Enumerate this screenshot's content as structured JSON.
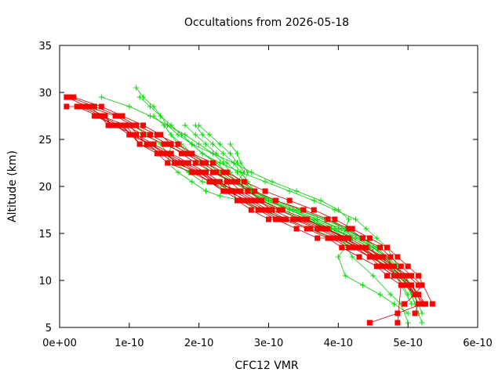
{
  "chart_data": {
    "type": "line",
    "title": "Occultations from 2026-05-18",
    "xlabel": "CFC12 VMR",
    "ylabel": "Altitude (km)",
    "xlim": [
      0,
      6e-10
    ],
    "ylim": [
      5,
      35
    ],
    "x_ticks": [
      {
        "value": 0,
        "label": "0e+00"
      },
      {
        "value": 1e-10,
        "label": "1e-10"
      },
      {
        "value": 2e-10,
        "label": "2e-10"
      },
      {
        "value": 3e-10,
        "label": "3e-10"
      },
      {
        "value": 4e-10,
        "label": "4e-10"
      },
      {
        "value": 5e-10,
        "label": "5e-10"
      },
      {
        "value": 6e-10,
        "label": "6e-10"
      }
    ],
    "y_ticks": [
      {
        "value": 5,
        "label": "5"
      },
      {
        "value": 10,
        "label": "10"
      },
      {
        "value": 15,
        "label": "15"
      },
      {
        "value": 20,
        "label": "20"
      },
      {
        "value": 25,
        "label": "25"
      },
      {
        "value": 30,
        "label": "30"
      },
      {
        "value": 35,
        "label": "35"
      }
    ],
    "grid": false,
    "legend": "none",
    "series_style": {
      "red": {
        "color": "#ff0000",
        "marker": "square",
        "line": "#cc0000"
      },
      "green": {
        "color": "#00dd00",
        "marker": "plus",
        "line": "#00cc00"
      }
    },
    "series": [
      {
        "style": "red",
        "x": [
          1e-11,
          4e-11,
          8e-11,
          1.05e-10,
          1.3e-10,
          1.55e-10,
          1.75e-10,
          1.95e-10,
          2.2e-10,
          2.5e-10,
          2.8e-10,
          3.1e-10,
          3.5e-10,
          3.85e-10,
          4.15e-10,
          4.35e-10,
          4.6e-10,
          4.75e-10,
          4.9e-10,
          5.05e-10,
          5.2e-10,
          5.1e-10,
          4.95e-10
        ],
        "y": [
          29.5,
          28.5,
          27.5,
          26.5,
          25.5,
          24.5,
          23.5,
          22.5,
          21.5,
          20.5,
          19.5,
          18.5,
          17.5,
          16.5,
          15.5,
          14.5,
          13.5,
          12.5,
          11.5,
          10.5,
          9.5,
          8.5,
          7.5
        ]
      },
      {
        "style": "red",
        "x": [
          1.5e-11,
          5e-11,
          8.5e-11,
          1.1e-10,
          1.4e-10,
          1.7e-10,
          1.9e-10,
          2.2e-10,
          2.4e-10,
          2.65e-10,
          2.95e-10,
          3.3e-10,
          3.65e-10,
          3.95e-10,
          4.2e-10,
          4.45e-10,
          4.7e-10,
          4.85e-10,
          5e-10,
          5.15e-10,
          5.35e-10
        ],
        "y": [
          29.5,
          28.5,
          27.5,
          26.5,
          25.5,
          24.5,
          23.5,
          22.5,
          21.5,
          20.5,
          19.5,
          18.5,
          17.5,
          16.5,
          15.5,
          14.5,
          13.5,
          12.5,
          11.5,
          10.5,
          7.5
        ]
      },
      {
        "style": "red",
        "x": [
          2e-11,
          6e-11,
          9e-11,
          1.2e-10,
          1.45e-10,
          1.6e-10,
          1.85e-10,
          2.1e-10,
          2.35e-10,
          2.55e-10,
          2.7e-10,
          2.9e-10,
          3.2e-10,
          3.55e-10,
          3.8e-10,
          4.1e-10,
          4.3e-10,
          4.5e-10,
          4.65e-10,
          4.85e-10,
          5e-10,
          5.15e-10,
          5.1e-10
        ],
        "y": [
          29.5,
          28.5,
          27.5,
          26.5,
          25.5,
          24.5,
          23.5,
          22.5,
          21.5,
          20.5,
          19.5,
          18.5,
          17.5,
          16.5,
          15.5,
          14.5,
          13.5,
          12.5,
          11.5,
          10.5,
          9.5,
          7.5,
          6.5
        ]
      },
      {
        "style": "red",
        "x": [
          1e-11,
          3e-11,
          6e-11,
          9.5e-11,
          1.2e-10,
          1.5e-10,
          1.8e-10,
          2.05e-10,
          2.25e-10,
          2.45e-10,
          2.6e-10,
          2.85e-10,
          3.05e-10,
          3.35e-10,
          3.7e-10,
          4e-10,
          4.3e-10,
          4.55e-10,
          4.75e-10,
          4.9e-10,
          5.05e-10,
          5.15e-10,
          5.25e-10
        ],
        "y": [
          28.5,
          28.5,
          27.5,
          26.5,
          25.5,
          24.5,
          23.5,
          22.5,
          21.5,
          20.5,
          19.5,
          18.5,
          17.5,
          16.5,
          15.5,
          14.5,
          13.5,
          12.5,
          11.5,
          10.5,
          9.5,
          8.5,
          7.5
        ]
      },
      {
        "style": "red",
        "x": [
          2.5e-11,
          5.5e-11,
          8e-11,
          1e-10,
          1.25e-10,
          1.45e-10,
          1.65e-10,
          2e-10,
          2.2e-10,
          2.4e-10,
          2.55e-10,
          2.75e-10,
          3e-10,
          3.4e-10,
          3.75e-10,
          4.05e-10,
          4.25e-10,
          4.45e-10,
          4.6e-10,
          4.8e-10,
          4.95e-10,
          5.1e-10
        ],
        "y": [
          28.5,
          27.5,
          26.5,
          26.5,
          24.5,
          23.5,
          22.5,
          21.5,
          20.5,
          20.5,
          18.5,
          17.5,
          16.5,
          16.5,
          15.5,
          14.5,
          13.5,
          12.5,
          11.5,
          10.5,
          9.5,
          8.5
        ]
      },
      {
        "style": "red",
        "x": [
          3.5e-11,
          6.5e-11,
          7.5e-11,
          1.1e-10,
          1.35e-10,
          1.6e-10,
          1.85e-10,
          2.1e-10,
          2.3e-10,
          2.5e-10,
          2.75e-10,
          3e-10,
          3.25e-10,
          3.6e-10,
          3.9e-10,
          4.15e-10,
          4.4e-10,
          4.65e-10,
          4.8e-10,
          5e-10,
          5.15e-10
        ],
        "y": [
          28.5,
          27.5,
          26.5,
          25.5,
          24.5,
          23.5,
          22.5,
          21.5,
          20.5,
          19.5,
          18.5,
          17.5,
          16.5,
          15.5,
          14.5,
          13.5,
          13.5,
          12.5,
          11.5,
          10.5,
          9.5
        ]
      },
      {
        "style": "red",
        "x": [
          4.5e-11,
          7e-11,
          9.5e-11,
          1.15e-10,
          1.5e-10,
          1.75e-10,
          2e-10,
          2.25e-10,
          2.55e-10,
          2.8e-10,
          3.15e-10,
          3.45e-10,
          3.8e-10,
          4.15e-10,
          4.4e-10,
          4.6e-10,
          4.8e-10,
          4.95e-10,
          5.1e-10,
          5.25e-10
        ],
        "y": [
          28.5,
          26.5,
          26.5,
          24.5,
          23.5,
          22.5,
          21.5,
          20.5,
          19.5,
          18.5,
          17.5,
          16.5,
          15.5,
          14.5,
          13.5,
          12.5,
          11.5,
          10.5,
          8.5,
          7.5
        ]
      },
      {
        "style": "red",
        "x": [
          5e-11,
          8e-11,
          1e-10,
          1.3e-10,
          1.55e-10,
          1.8e-10,
          2.05e-10,
          2.25e-10,
          2.45e-10,
          2.65e-10,
          2.9e-10,
          3.15e-10,
          3.5e-10,
          3.85e-10,
          4.1e-10,
          4.35e-10,
          4.55e-10,
          4.75e-10,
          4.9e-10,
          5.05e-10,
          5.2e-10,
          4.85e-10,
          4.45e-10
        ],
        "y": [
          27.5,
          26.5,
          25.5,
          24.5,
          23.5,
          22.5,
          21.5,
          20.5,
          19.5,
          18.5,
          17.5,
          16.5,
          16.5,
          15.5,
          14.5,
          13.5,
          12.5,
          11.5,
          10.5,
          9.5,
          7.5,
          6.5,
          5.5
        ]
      },
      {
        "style": "red",
        "x": [
          6e-11,
          8.5e-11,
          1.05e-10,
          1.3e-10,
          1.5e-10,
          1.7e-10,
          1.95e-10,
          2.15e-10,
          2.35e-10,
          2.6e-10,
          2.85e-10,
          3.1e-10,
          3.4e-10,
          3.7e-10,
          3.95e-10,
          4.2e-10,
          4.45e-10,
          4.7e-10,
          4.85e-10,
          5e-10,
          5.1e-10
        ],
        "y": [
          27.5,
          26.5,
          25.5,
          24.5,
          23.5,
          22.5,
          21.5,
          20.5,
          19.5,
          18.5,
          17.5,
          16.5,
          15.5,
          14.5,
          14.5,
          13.5,
          12.5,
          11.5,
          10.5,
          9.5,
          8.5
        ]
      },
      {
        "style": "red",
        "x": [
          7e-11,
          9e-11,
          1.15e-10,
          1.4e-10,
          1.55e-10,
          1.9e-10,
          2.15e-10,
          2.4e-10,
          2.7e-10,
          2.95e-10,
          3.2e-10,
          3.55e-10,
          3.85e-10,
          4.05e-10,
          4.3e-10,
          4.55e-10,
          4.7e-10,
          4.9e-10,
          4.85e-10
        ],
        "y": [
          26.5,
          26.5,
          24.5,
          23.5,
          22.5,
          21.5,
          20.5,
          19.5,
          18.5,
          17.5,
          16.5,
          15.5,
          14.5,
          13.5,
          12.5,
          11.5,
          10.5,
          9.5,
          5.5
        ]
      },
      {
        "style": "green",
        "x": [
          6e-11,
          1e-10,
          1.3e-10,
          1.55e-10,
          1.8e-10,
          2e-10,
          2.2e-10,
          2.35e-10,
          2.45e-10,
          2.6e-10,
          2.8e-10,
          3.1e-10,
          3.45e-10,
          3.8e-10,
          4.1e-10,
          4.35e-10,
          4.5e-10,
          4.7e-10,
          4.9e-10,
          5.05e-10,
          5.15e-10,
          5.2e-10
        ],
        "y": [
          29.5,
          28.5,
          27.5,
          26.5,
          25.5,
          24.5,
          23.5,
          22.5,
          21.5,
          20.5,
          19.5,
          18.5,
          17.5,
          16.5,
          15.5,
          14.5,
          13.5,
          12.5,
          10.5,
          8.5,
          6.5,
          5.5
        ]
      },
      {
        "style": "green",
        "x": [
          1.1e-10,
          1.2e-10,
          1.35e-10,
          1.45e-10,
          1.55e-10,
          1.7e-10,
          1.9e-10,
          2.2e-10,
          2.5e-10,
          2.75e-10,
          3.05e-10,
          3.4e-10,
          3.75e-10,
          4e-10,
          4.15e-10,
          4.05e-10,
          4.2e-10,
          4.5e-10,
          4.75e-10,
          4.9e-10,
          5e-10
        ],
        "y": [
          30.5,
          29.5,
          28.5,
          27.5,
          26.5,
          25.5,
          24.5,
          23.5,
          22.5,
          21.5,
          20.5,
          19.5,
          18.5,
          17.5,
          16.5,
          14.5,
          12.5,
          10.5,
          8.5,
          7.5,
          5.5
        ]
      },
      {
        "style": "green",
        "x": [
          1.15e-10,
          1.3e-10,
          1.45e-10,
          1.6e-10,
          1.75e-10,
          1.9e-10,
          2.05e-10,
          2.3e-10,
          2.6e-10,
          2.95e-10,
          3.3e-10,
          3.65e-10,
          3.95e-10,
          4.25e-10,
          4.4e-10,
          4.55e-10,
          4.7e-10,
          4.85e-10,
          5e-10,
          5.1e-10
        ],
        "y": [
          29.5,
          28.5,
          27.5,
          26.5,
          25.5,
          24.5,
          23.5,
          22.5,
          21.5,
          20.5,
          19.5,
          18.5,
          17.5,
          16.5,
          15.5,
          14.5,
          13.5,
          11.5,
          9.5,
          7.5
        ]
      },
      {
        "style": "green",
        "x": [
          1.35e-10,
          1.5e-10,
          1.6e-10,
          1.7e-10,
          1.85e-10,
          2e-10,
          2.2e-10,
          2.45e-10,
          2.75e-10,
          3.1e-10,
          3.5e-10,
          3.85e-10,
          4.1e-10,
          4.2e-10,
          4e-10,
          4.1e-10,
          4.35e-10,
          4.6e-10,
          4.8e-10,
          5e-10
        ],
        "y": [
          27.5,
          26.5,
          25.5,
          24.5,
          23.5,
          22.5,
          21.5,
          20.5,
          19.5,
          18.5,
          17.5,
          16.5,
          15.5,
          14.5,
          12.5,
          10.5,
          9.5,
          8.5,
          7.5,
          6.5
        ]
      },
      {
        "style": "green",
        "x": [
          1.5e-10,
          1.6e-10,
          1.75e-10,
          1.9e-10,
          2.1e-10,
          2.3e-10,
          2.5e-10,
          2.7e-10,
          2.95e-10,
          3.3e-10,
          3.65e-10,
          3.95e-10,
          4.2e-10,
          4.45e-10,
          4.6e-10,
          4.75e-10,
          4.9e-10,
          5.05e-10
        ],
        "y": [
          26.5,
          25.5,
          24.5,
          23.5,
          22.5,
          21.5,
          20.5,
          19.5,
          18.5,
          17.5,
          16.5,
          15.5,
          14.5,
          13.5,
          12.5,
          11.5,
          9.5,
          7.5
        ]
      },
      {
        "style": "green",
        "x": [
          1.6e-10,
          1.75e-10,
          1.9e-10,
          2.05e-10,
          2.25e-10,
          2.4e-10,
          2.55e-10,
          2.7e-10,
          2.9e-10,
          3.2e-10,
          3.55e-10,
          3.9e-10,
          4.25e-10,
          4.5e-10,
          4.65e-10,
          4.8e-10,
          4.95e-10,
          5.05e-10,
          5.15e-10
        ],
        "y": [
          26.5,
          25.5,
          24.5,
          23.5,
          22.5,
          21.5,
          20.5,
          19.5,
          18.5,
          17.5,
          16.5,
          15.5,
          14.5,
          13.5,
          12.5,
          11.5,
          10.5,
          9.5,
          8.5
        ]
      },
      {
        "style": "green",
        "x": [
          1.8e-10,
          1.95e-10,
          2.1e-10,
          2.25e-10,
          2.4e-10,
          2.55e-10,
          2.65e-10,
          2.8e-10,
          3e-10,
          3.35e-10,
          3.7e-10,
          4e-10,
          4.3e-10,
          4.5e-10,
          4.7e-10,
          4.85e-10
        ],
        "y": [
          26.5,
          25.5,
          24.5,
          23.5,
          22.5,
          21.5,
          20.5,
          19.5,
          18.5,
          17.5,
          16.5,
          15.5,
          14.5,
          13.5,
          12.5,
          11.5
        ]
      },
      {
        "style": "green",
        "x": [
          1.95e-10,
          2.05e-10,
          2.2e-10,
          2.35e-10,
          2.5e-10,
          2.6e-10,
          2.7e-10,
          2.8e-10,
          3e-10,
          3.3e-10,
          3.6e-10,
          3.9e-10,
          4.1e-10,
          4.3e-10,
          4.5e-10,
          4.7e-10,
          4.9e-10,
          5.1e-10,
          5.2e-10
        ],
        "y": [
          26.5,
          25.5,
          24.5,
          23.5,
          22.5,
          21.5,
          20.5,
          19.5,
          18.5,
          17.5,
          16.5,
          15.5,
          14.5,
          13.5,
          12.5,
          11.5,
          10.5,
          8.5,
          6.5
        ]
      },
      {
        "style": "green",
        "x": [
          2e-10,
          2.15e-10,
          2.3e-10,
          2.45e-10,
          2.55e-10,
          2.65e-10,
          2.55e-10,
          2.75e-10,
          3.05e-10,
          3.4e-10,
          3.8e-10,
          4.1e-10,
          4.35e-10,
          4.55e-10,
          4.7e-10,
          4.85e-10,
          5e-10
        ],
        "y": [
          26.5,
          25.5,
          24.5,
          23.5,
          22.5,
          21.5,
          20.5,
          19.5,
          18.5,
          17.5,
          16.5,
          15.5,
          14.5,
          13.5,
          12.5,
          10.5,
          8.5
        ]
      },
      {
        "style": "green",
        "x": [
          1.45e-10,
          1.6e-10,
          1.55e-10,
          1.7e-10,
          1.9e-10,
          2.1e-10,
          2.3e-10,
          2.6e-10,
          2.9e-10,
          3.25e-10,
          3.6e-10,
          3.95e-10,
          4.3e-10,
          4.55e-10,
          4.75e-10,
          4.9e-10
        ],
        "y": [
          25.5,
          24.5,
          22.5,
          21.5,
          20.5,
          19.5,
          19.0,
          18.5,
          17.5,
          16.5,
          15.5,
          14.5,
          13.5,
          12.5,
          11.5,
          10.5
        ]
      },
      {
        "style": "green",
        "x": [
          1.05e-10,
          1.25e-10,
          1.45e-10,
          1.55e-10,
          1.65e-10,
          1.85e-10,
          2.05e-10,
          2.35e-10,
          2.7e-10,
          3e-10,
          3.35e-10,
          3.7e-10,
          4.05e-10,
          4.35e-10,
          4.55e-10
        ],
        "y": [
          26.5,
          25.5,
          24.5,
          23.5,
          22.5,
          21.5,
          20.5,
          20.0,
          19.5,
          18.5,
          17.5,
          16.5,
          15.5,
          14.5,
          13.5
        ]
      },
      {
        "style": "green",
        "x": [
          2.45e-10,
          2.55e-10,
          2.6e-10,
          2.7e-10,
          2.65e-10,
          2.75e-10,
          2.9e-10,
          3.15e-10,
          3.5e-10,
          3.9e-10,
          4.2e-10,
          4.45e-10,
          4.6e-10,
          4.8e-10
        ],
        "y": [
          24.5,
          23.5,
          22.5,
          21.5,
          20.5,
          19.5,
          18.5,
          17.5,
          16.5,
          15.5,
          14.5,
          13.5,
          12.5,
          11.5
        ]
      }
    ]
  }
}
